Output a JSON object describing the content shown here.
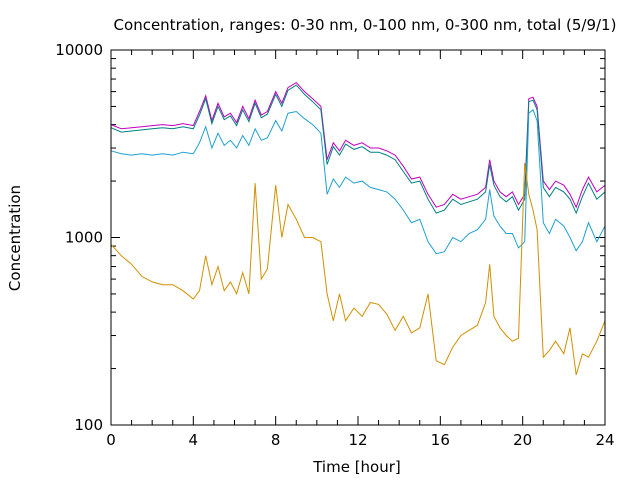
{
  "chart_data": {
    "type": "line",
    "title": "Concentration, ranges: 0-30 nm, 0-100 nm, 0-300 nm, total (5/9/1)",
    "xlabel": "Time [hour]",
    "ylabel": "Concentration",
    "xlim": [
      0,
      24
    ],
    "ylim": [
      100,
      10000
    ],
    "yscale": "log",
    "grid": false,
    "legend": "none",
    "x_ticks": [
      0,
      4,
      8,
      12,
      16,
      20,
      24
    ],
    "x_tick_labels": [
      "0",
      "4",
      "8",
      "12",
      "16",
      "20",
      "24"
    ],
    "y_ticks": [
      100,
      1000,
      10000
    ],
    "y_tick_labels": [
      "100",
      "1000",
      "10000"
    ],
    "x": [
      0,
      0.5,
      1,
      1.5,
      2,
      2.5,
      3,
      3.5,
      4,
      4.3,
      4.6,
      4.9,
      5.2,
      5.5,
      5.8,
      6.1,
      6.4,
      6.7,
      7.0,
      7.3,
      7.6,
      8.0,
      8.3,
      8.6,
      9.0,
      9.4,
      9.8,
      10.2,
      10.5,
      10.8,
      11.1,
      11.4,
      11.8,
      12.2,
      12.6,
      13.0,
      13.4,
      13.8,
      14.2,
      14.6,
      15.0,
      15.4,
      15.8,
      16.2,
      16.6,
      17.0,
      17.4,
      17.8,
      18.2,
      18.4,
      18.6,
      18.9,
      19.2,
      19.5,
      19.8,
      20.1,
      20.3,
      20.5,
      20.7,
      21.0,
      21.3,
      21.6,
      22.0,
      22.3,
      22.6,
      22.9,
      23.2,
      23.6,
      24.0
    ],
    "series": [
      {
        "color": "#c000c0",
        "values": [
          4000,
          3800,
          3850,
          3900,
          3950,
          4000,
          3950,
          4050,
          3950,
          4700,
          5700,
          4200,
          5200,
          4400,
          4600,
          4100,
          5000,
          4300,
          5400,
          4500,
          4700,
          6000,
          5200,
          6300,
          6700,
          6000,
          5500,
          5000,
          2600,
          3200,
          2900,
          3300,
          3100,
          3200,
          3000,
          3000,
          2900,
          2750,
          2400,
          2050,
          2100,
          1700,
          1450,
          1500,
          1700,
          1600,
          1650,
          1700,
          1850,
          2600,
          2000,
          1750,
          1650,
          1750,
          1500,
          1700,
          5500,
          5600,
          5000,
          2000,
          1800,
          2000,
          1900,
          1700,
          1450,
          1800,
          2100,
          1750,
          1900
        ]
      },
      {
        "color": "#008080",
        "values": [
          3850,
          3650,
          3700,
          3750,
          3800,
          3850,
          3800,
          3900,
          3800,
          4500,
          5500,
          4050,
          5000,
          4250,
          4450,
          3950,
          4800,
          4150,
          5200,
          4350,
          4550,
          5800,
          5000,
          6100,
          6500,
          5800,
          5300,
          4800,
          2450,
          3050,
          2750,
          3150,
          2950,
          3050,
          2850,
          2850,
          2750,
          2600,
          2250,
          1950,
          2000,
          1600,
          1350,
          1400,
          1600,
          1500,
          1550,
          1600,
          1750,
          2450,
          1900,
          1650,
          1550,
          1650,
          1400,
          1600,
          5300,
          5400,
          4800,
          1850,
          1650,
          1850,
          1750,
          1600,
          1350,
          1650,
          1950,
          1600,
          1750
        ]
      },
      {
        "color": "#20a0d0",
        "values": [
          2900,
          2800,
          2750,
          2800,
          2750,
          2800,
          2750,
          2850,
          2800,
          3200,
          3900,
          3000,
          3600,
          3100,
          3300,
          3000,
          3500,
          3100,
          3800,
          3300,
          3400,
          4200,
          3700,
          4600,
          4700,
          4300,
          4000,
          3600,
          1700,
          2050,
          1850,
          2100,
          1950,
          2000,
          1850,
          1800,
          1750,
          1600,
          1400,
          1200,
          1250,
          950,
          820,
          840,
          1000,
          950,
          1050,
          1100,
          1250,
          1800,
          1300,
          1150,
          1050,
          1050,
          880,
          950,
          4600,
          4800,
          4200,
          1200,
          1050,
          1250,
          1150,
          1000,
          850,
          950,
          1200,
          950,
          1150
        ]
      },
      {
        "color": "#d09000",
        "values": [
          920,
          800,
          720,
          620,
          580,
          560,
          560,
          520,
          470,
          520,
          800,
          560,
          700,
          520,
          580,
          500,
          650,
          500,
          1950,
          600,
          680,
          1900,
          1000,
          1500,
          1250,
          1000,
          1000,
          950,
          500,
          360,
          500,
          360,
          420,
          380,
          450,
          440,
          390,
          320,
          380,
          310,
          330,
          500,
          220,
          210,
          260,
          300,
          320,
          340,
          450,
          720,
          380,
          330,
          300,
          280,
          290,
          2500,
          1700,
          1400,
          1100,
          230,
          250,
          280,
          240,
          330,
          185,
          240,
          230,
          280,
          360
        ]
      }
    ]
  }
}
